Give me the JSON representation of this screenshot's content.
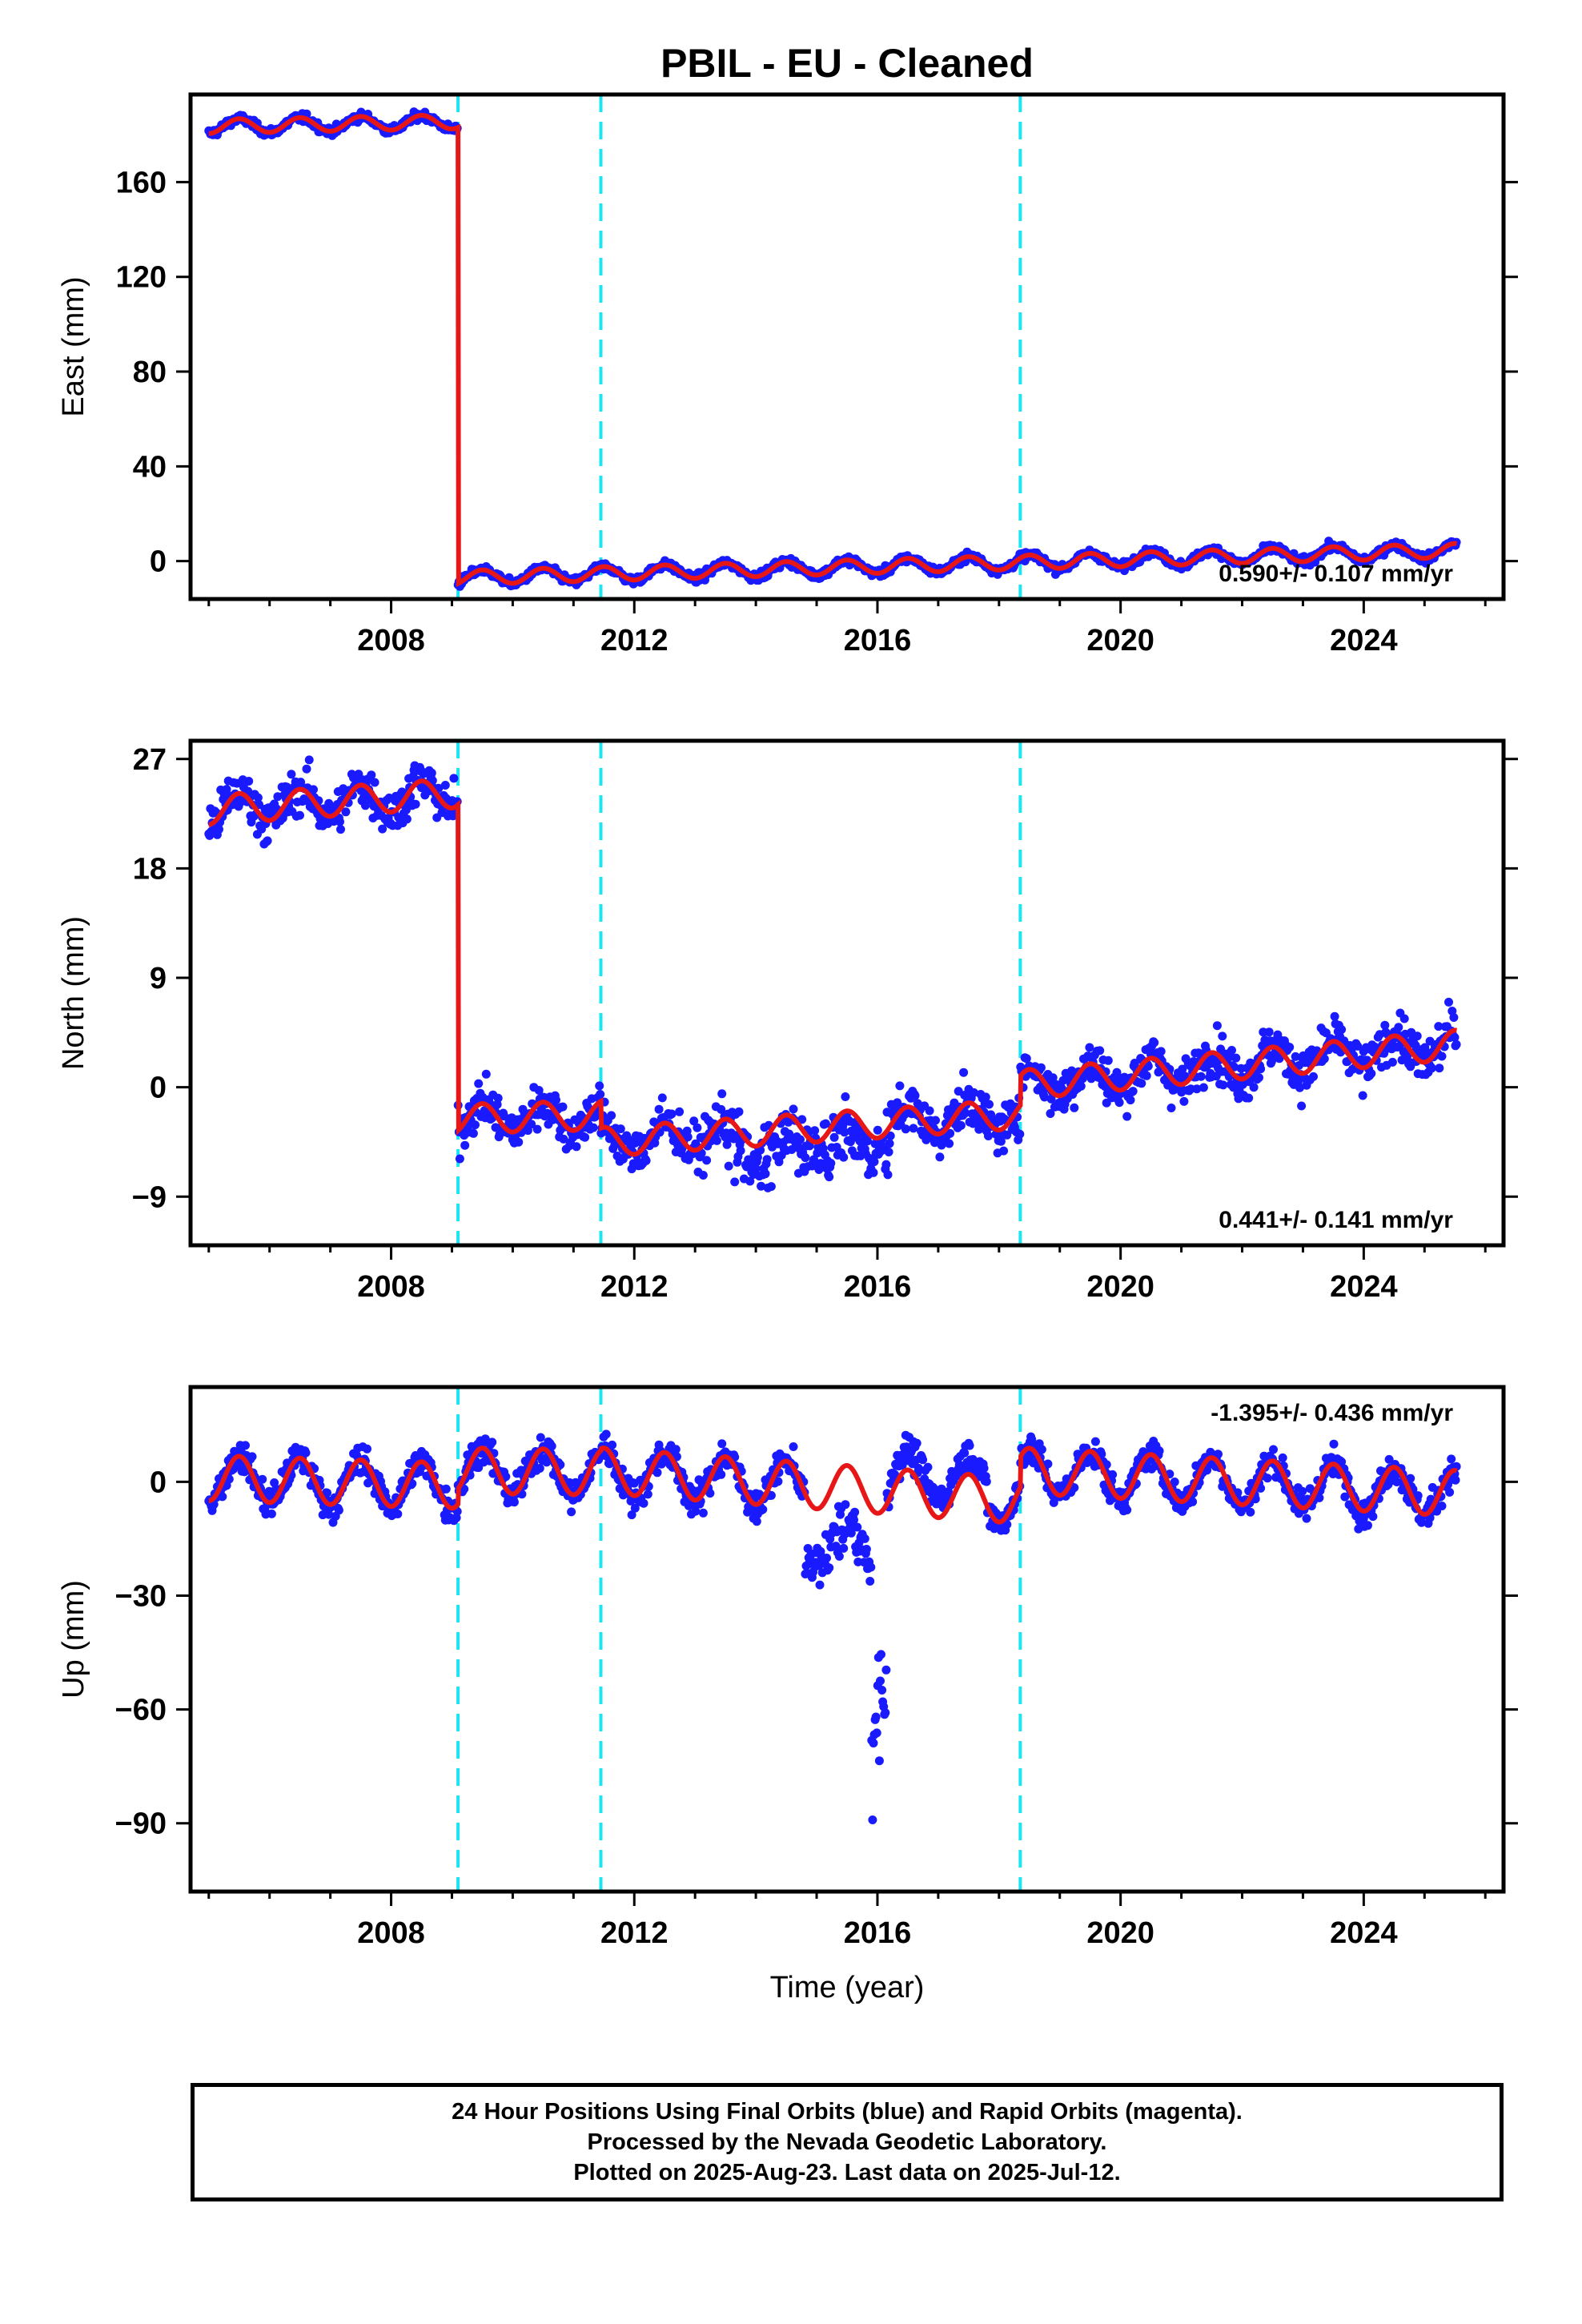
{
  "footer": {
    "line1": "24 Hour Positions Using Final Orbits (blue) and Rapid Orbits (magenta).",
    "line2": "Processed by the Nevada Geodetic Laboratory.",
    "line3": "Plotted on 2025-Aug-23. Last data on 2025-Jul-12."
  },
  "colors": {
    "final": "#1a1aff",
    "model": "#e81717",
    "event": "#19e6f0",
    "frame": "#000000"
  },
  "chart_data": [
    {
      "type": "scatter",
      "title": "PBIL  - EU - Cleaned",
      "ylabel": "East (mm)",
      "xlabel": "",
      "xlim": [
        2004.7,
        2026.3
      ],
      "ylim": [
        -16,
        197
      ],
      "xticks": [
        2008,
        2012,
        2016,
        2020,
        2024
      ],
      "yticks": [
        0,
        40,
        80,
        120,
        160
      ],
      "events": [
        2009.1,
        2011.45,
        2018.35
      ],
      "rate_label": "0.590+/- 0.107 mm/yr",
      "data_start": 2005.0,
      "data_end": 2025.53,
      "seasonal_amplitude": 3,
      "segments": [
        {
          "start": 2005.0,
          "end": 2009.1,
          "offset_start": 183.5,
          "offset_end": 185.5
        },
        {
          "start": 2009.1,
          "end": 2025.53,
          "offset_start": -7,
          "offset_end": 4.5
        }
      ]
    },
    {
      "type": "scatter",
      "ylabel": "North (mm)",
      "xlabel": "",
      "xlim": [
        2004.7,
        2026.3
      ],
      "ylim": [
        -13,
        28.5
      ],
      "xticks": [
        2008,
        2012,
        2016,
        2020,
        2024
      ],
      "yticks": [
        -9,
        0,
        9,
        18,
        27
      ],
      "events": [
        2009.1,
        2011.45,
        2018.35
      ],
      "rate_label": "0.441+/- 0.141 mm/yr",
      "data_start": 2005.0,
      "data_end": 2025.53,
      "seasonal_amplitude": 1.2,
      "segments": [
        {
          "start": 2005.0,
          "end": 2009.1,
          "offset_start": 22.8,
          "offset_end": 24.2
        },
        {
          "start": 2009.1,
          "end": 2011.45,
          "offset_start": -2.6,
          "offset_end": -2.3
        },
        {
          "start": 2011.45,
          "end": 2018.35,
          "offset_start": -4.5,
          "offset_end": -2.2
        },
        {
          "start": 2018.35,
          "end": 2025.53,
          "offset_start": 0.2,
          "offset_end": 3.5
        }
      ]
    },
    {
      "type": "scatter",
      "ylabel": "Up (mm)",
      "xlabel": "Time (year)",
      "xlim": [
        2004.7,
        2026.3
      ],
      "ylim": [
        -108,
        25
      ],
      "xticks": [
        2008,
        2012,
        2016,
        2020,
        2024
      ],
      "yticks": [
        -90,
        -60,
        -30,
        0
      ],
      "events": [
        2009.1,
        2011.45,
        2018.35
      ],
      "rate_label": "-1.395+/- 0.436 mm/yr",
      "data_start": 2005.0,
      "data_end": 2025.53,
      "seasonal_amplitude": 6,
      "segments": [
        {
          "start": 2005.0,
          "end": 2009.1,
          "offset_start": 1,
          "offset_end": -1
        },
        {
          "start": 2009.1,
          "end": 2011.45,
          "offset_start": 3,
          "offset_end": 2.5
        },
        {
          "start": 2011.45,
          "end": 2018.35,
          "offset_start": 3,
          "offset_end": -5
        },
        {
          "start": 2018.35,
          "end": 2025.53,
          "offset_start": 3,
          "offset_end": -3
        }
      ]
    }
  ]
}
